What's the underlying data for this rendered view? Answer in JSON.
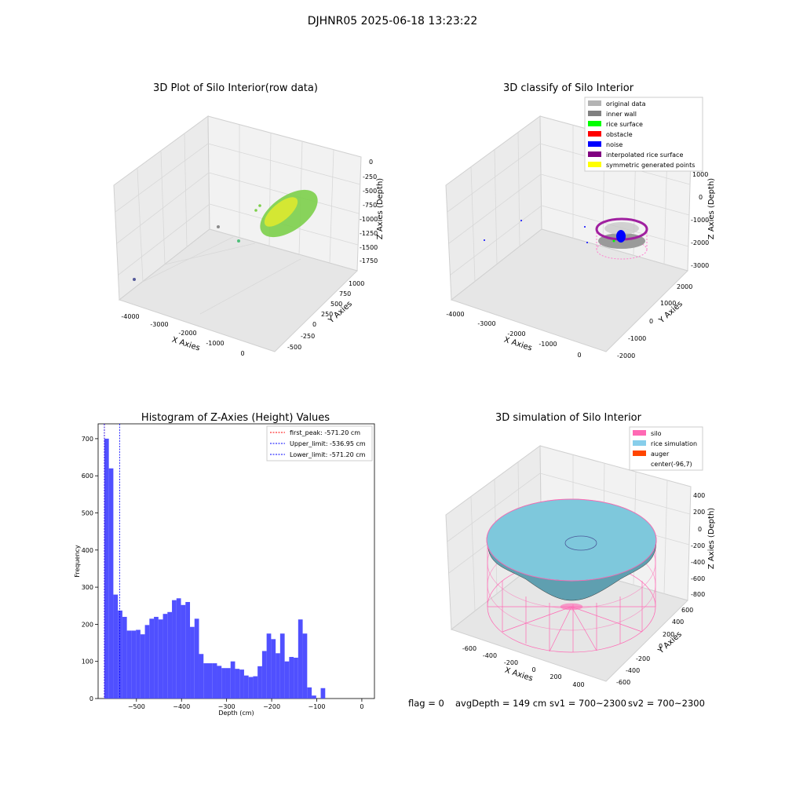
{
  "suptitle": "DJHNR05 2025-06-18 13:23:22",
  "colors": {
    "hist_bar": "#5050ff",
    "first_peak": "#ff0000",
    "upper_limit": "#0000ff",
    "lower_limit": "#0000ff",
    "rice_fill": "#7ec8dc",
    "silo_mesh": "#ff69b4",
    "pane_gray": "#ebebeb"
  },
  "plot1": {
    "title": "3D Plot of Silo Interior(row data)",
    "xlabel": "X Axies",
    "ylabel": "Y Axies",
    "zlabel": "Z Axies (Depth)",
    "xticks": [
      "-4000",
      "-3000",
      "-2000",
      "-1000",
      "0"
    ],
    "yticks": [
      "-500",
      "-250",
      "0",
      "250",
      "500",
      "750",
      "1000"
    ],
    "zticks": [
      "0",
      "-250",
      "-500",
      "-750",
      "-1000",
      "-1250",
      "-1500",
      "-1750"
    ]
  },
  "plot2": {
    "title": "3D classify of Silo Interior",
    "xlabel": "X Axies",
    "ylabel": "Y Axies",
    "zlabel": "Z Axies (Depth)",
    "xticks": [
      "-4000",
      "-3000",
      "-2000",
      "-1000",
      "0"
    ],
    "yticks": [
      "-2000",
      "-1000",
      "0",
      "1000",
      "2000"
    ],
    "zticks": [
      "1000",
      "0",
      "-1000",
      "-2000",
      "-3000"
    ],
    "legend": [
      {
        "label": "original data",
        "color": "#b4b4b4"
      },
      {
        "label": "inner wall",
        "color": "#808080"
      },
      {
        "label": "rice surface",
        "color": "#00ff00"
      },
      {
        "label": "obstacle",
        "color": "#ff0000"
      },
      {
        "label": "noise",
        "color": "#0000ff"
      },
      {
        "label": "interpolated rice surface",
        "color": "#800080"
      },
      {
        "label": "symmetric generated points",
        "color": "#ffff00"
      }
    ]
  },
  "plot4": {
    "title": "3D simulation of Silo Interior",
    "xlabel": "X Axies",
    "ylabel": "Y Axies",
    "zlabel": "Z Axies (Depth)",
    "xticks": [
      "-600",
      "-400",
      "-200",
      "0",
      "200",
      "400"
    ],
    "yticks": [
      "-600",
      "-400",
      "-200",
      "0",
      "200",
      "400",
      "600"
    ],
    "zticks": [
      "400",
      "200",
      "0",
      "-200",
      "-400",
      "-600",
      "-800"
    ],
    "legend": [
      {
        "label": "silo",
        "color": "#ff69b4"
      },
      {
        "label": "rice simulation",
        "color": "#87ceeb"
      },
      {
        "label": "auger",
        "color": "#ff4500"
      },
      {
        "label": "center(-96,7)",
        "color": ""
      }
    ]
  },
  "status": {
    "flag": "flag = 0",
    "avg_depth": "avgDepth = 149 cm",
    "sv1": "sv1 = 700~2300",
    "sv2": "sv2 = 700~2300"
  },
  "chart_data": [
    {
      "type": "scatter",
      "title": "3D Plot of Silo Interior(row data)",
      "xlabel": "X Axies",
      "ylabel": "Y Axies",
      "zlabel": "Z Axies (Depth)",
      "xlim": [
        -4300,
        400
      ],
      "ylim": [
        -600,
        1100
      ],
      "zlim": [
        -1800,
        50
      ]
    },
    {
      "type": "scatter",
      "title": "3D classify of Silo Interior",
      "xlabel": "X Axies",
      "ylabel": "Y Axies",
      "zlabel": "Z Axies (Depth)",
      "xlim": [
        -4300,
        400
      ],
      "ylim": [
        -2200,
        2200
      ],
      "zlim": [
        -3000,
        1000
      ],
      "series": [
        {
          "name": "original data"
        },
        {
          "name": "inner wall"
        },
        {
          "name": "rice surface"
        },
        {
          "name": "obstacle"
        },
        {
          "name": "noise"
        },
        {
          "name": "interpolated rice surface"
        },
        {
          "name": "symmetric generated points"
        }
      ]
    },
    {
      "type": "bar",
      "title": "Histogram of Z-Axies (Height) Values",
      "xlabel": "Depth (cm)",
      "ylabel": "Frequency",
      "xlim": [
        -585,
        28
      ],
      "ylim": [
        0,
        740
      ],
      "xticks": [
        -500,
        -400,
        -300,
        -200,
        -100,
        0
      ],
      "yticks": [
        0,
        100,
        200,
        300,
        400,
        500,
        600,
        700
      ],
      "bin_start": -571.2,
      "bin_width": 10,
      "values": [
        700,
        620,
        280,
        237,
        220,
        183,
        183,
        185,
        173,
        198,
        215,
        220,
        213,
        228,
        233,
        265,
        270,
        252,
        260,
        193,
        215,
        120,
        95,
        95,
        95,
        88,
        82,
        82,
        100,
        80,
        78,
        62,
        58,
        60,
        87,
        128,
        175,
        160,
        122,
        175,
        100,
        112,
        110,
        213,
        175,
        30,
        8,
        0,
        28
      ],
      "vlines": [
        {
          "name": "first_peak",
          "label": "first_peak: -571.20 cm",
          "x": -571.2,
          "color": "#ff0000"
        },
        {
          "name": "Upper_limit",
          "label": "Upper_limit: -536.95 cm",
          "x": -536.95,
          "color": "#0000ff"
        },
        {
          "name": "Lower_limit",
          "label": "Lower_limit: -571.20 cm",
          "x": -571.2,
          "color": "#0000ff"
        }
      ]
    },
    {
      "type": "surface",
      "title": "3D simulation of Silo Interior",
      "xlabel": "X Axies",
      "ylabel": "Y Axies",
      "zlabel": "Z Axies (Depth)",
      "xlim": [
        -700,
        500
      ],
      "ylim": [
        -700,
        700
      ],
      "zlim": [
        -900,
        500
      ],
      "series": [
        {
          "name": "silo"
        },
        {
          "name": "rice simulation"
        },
        {
          "name": "auger"
        },
        {
          "name": "center(-96,7)"
        }
      ]
    }
  ]
}
